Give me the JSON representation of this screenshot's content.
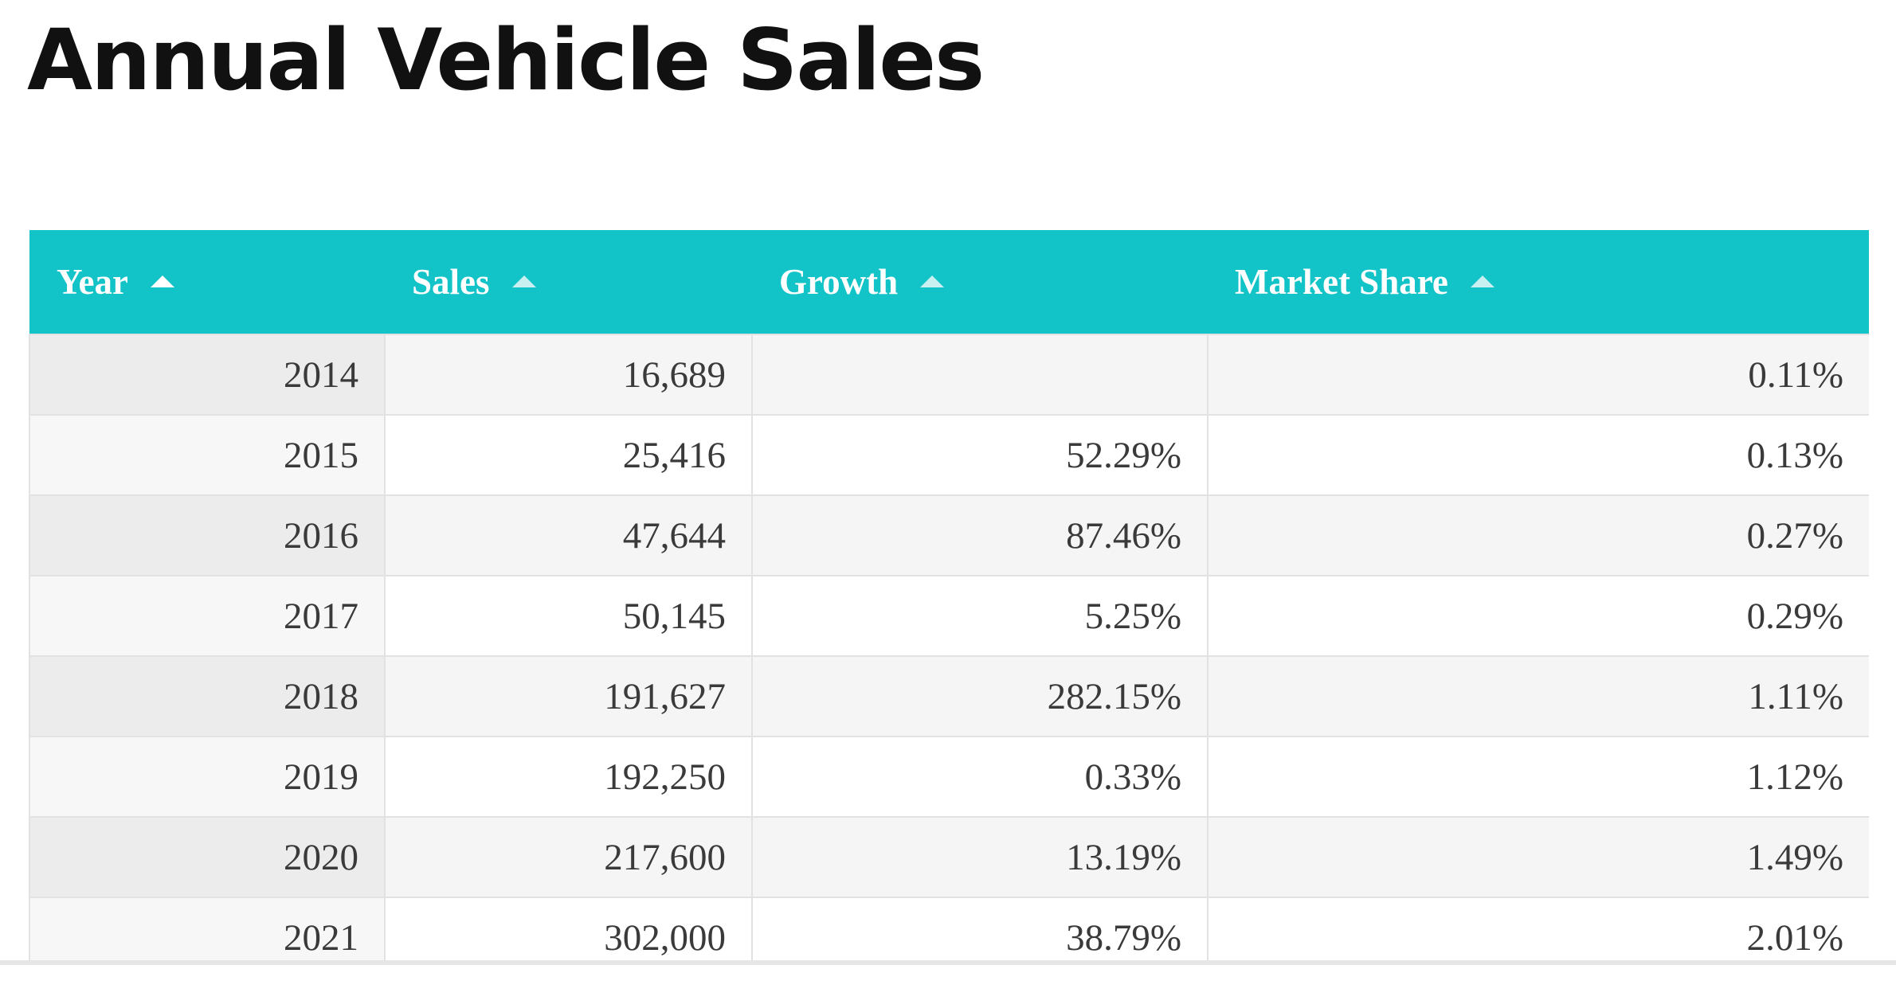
{
  "page": {
    "title": "Annual Vehicle Sales"
  },
  "colors": {
    "header_background": "#12c3c7",
    "header_text": "#ffffff",
    "cell_text": "#3a3a3a",
    "row_stripe": "#f5f5f5"
  },
  "table": {
    "headers": [
      {
        "label": "Year",
        "sort_icon": "sort-ascending-icon"
      },
      {
        "label": "Sales",
        "sort_icon": "sort-ascending-icon"
      },
      {
        "label": "Growth",
        "sort_icon": "sort-ascending-icon"
      },
      {
        "label": "Market Share",
        "sort_icon": "sort-ascending-icon"
      }
    ],
    "rows": [
      {
        "year": "2014",
        "sales": "16,689",
        "growth": "",
        "market_share": "0.11%"
      },
      {
        "year": "2015",
        "sales": "25,416",
        "growth": "52.29%",
        "market_share": "0.13%"
      },
      {
        "year": "2016",
        "sales": "47,644",
        "growth": "87.46%",
        "market_share": "0.27%"
      },
      {
        "year": "2017",
        "sales": "50,145",
        "growth": "5.25%",
        "market_share": "0.29%"
      },
      {
        "year": "2018",
        "sales": "191,627",
        "growth": "282.15%",
        "market_share": "1.11%"
      },
      {
        "year": "2019",
        "sales": "192,250",
        "growth": "0.33%",
        "market_share": "1.12%"
      },
      {
        "year": "2020",
        "sales": "217,600",
        "growth": "13.19%",
        "market_share": "1.49%"
      },
      {
        "year": "2021",
        "sales": "302,000",
        "growth": "38.79%",
        "market_share": "2.01%"
      }
    ]
  },
  "chart_data": {
    "type": "table",
    "columns": [
      "Year",
      "Sales",
      "Growth",
      "Market Share"
    ],
    "rows": [
      [
        "2014",
        "16,689",
        "",
        "0.11%"
      ],
      [
        "2015",
        "25,416",
        "52.29%",
        "0.13%"
      ],
      [
        "2016",
        "47,644",
        "87.46%",
        "0.27%"
      ],
      [
        "2017",
        "50,145",
        "5.25%",
        "0.29%"
      ],
      [
        "2018",
        "191,627",
        "282.15%",
        "1.11%"
      ],
      [
        "2019",
        "192,250",
        "0.33%",
        "1.12%"
      ],
      [
        "2020",
        "217,600",
        "13.19%",
        "1.49%"
      ],
      [
        "2021",
        "302,000",
        "38.79%",
        "2.01%"
      ]
    ]
  }
}
